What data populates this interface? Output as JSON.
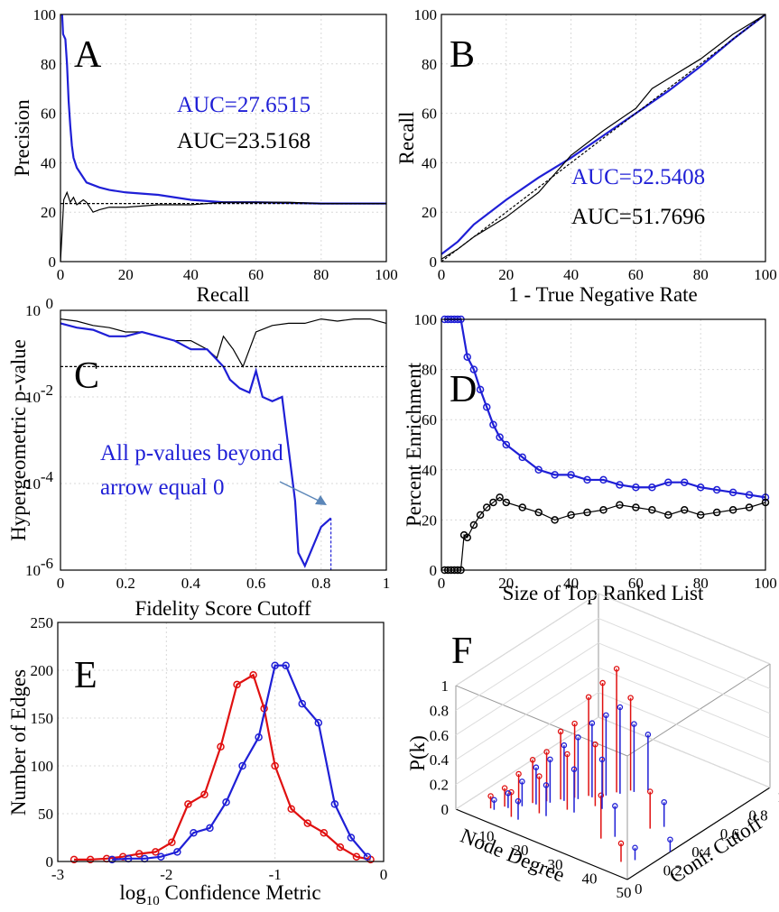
{
  "chart_data": [
    {
      "panel": "A",
      "type": "line",
      "xlabel": "Recall",
      "ylabel": "Precision",
      "xlim": [
        0,
        100
      ],
      "ylim": [
        0,
        100
      ],
      "xticks": [
        0,
        20,
        40,
        60,
        80,
        100
      ],
      "yticks": [
        0,
        20,
        40,
        60,
        80,
        100
      ],
      "grid": true,
      "annotations": [
        {
          "text": "AUC=27.6515",
          "color": "#1f1fd6"
        },
        {
          "text": "AUC=23.5168",
          "color": "#000000"
        }
      ],
      "series": [
        {
          "color": "#1f1fd6",
          "x": [
            0.5,
            0.8,
            1.5,
            2,
            2.5,
            3,
            3.5,
            4,
            5,
            6,
            7,
            8,
            10,
            12,
            15,
            20,
            30,
            40,
            50,
            60,
            80,
            100
          ],
          "y": [
            100,
            92,
            90,
            80,
            65,
            55,
            47,
            42,
            38,
            36,
            34,
            32,
            31,
            30,
            29,
            28,
            27,
            25,
            24,
            24,
            23.5,
            23.5
          ]
        },
        {
          "color": "#000000",
          "x": [
            0,
            0.5,
            1,
            2,
            3,
            4,
            5,
            7,
            8,
            9,
            10,
            12,
            15,
            20,
            30,
            40,
            50,
            60,
            70,
            80,
            90,
            100
          ],
          "y": [
            0,
            12,
            25,
            28,
            24,
            26,
            23,
            25,
            24,
            22,
            20,
            21,
            22,
            22,
            23,
            23,
            24,
            24,
            24,
            23.5,
            23.5,
            23.5
          ]
        },
        {
          "color": "#000000",
          "dashed": true,
          "x": [
            0,
            100
          ],
          "y": [
            23.5,
            23.5
          ]
        }
      ]
    },
    {
      "panel": "B",
      "type": "line",
      "xlabel": "1 - True Negative Rate",
      "ylabel": "Recall",
      "xlim": [
        0,
        100
      ],
      "ylim": [
        0,
        100
      ],
      "xticks": [
        0,
        20,
        40,
        60,
        80,
        100
      ],
      "yticks": [
        0,
        20,
        40,
        60,
        80,
        100
      ],
      "grid": true,
      "annotations": [
        {
          "text": "AUC=52.5408",
          "color": "#1f1fd6"
        },
        {
          "text": "AUC=51.7696",
          "color": "#000000"
        }
      ],
      "series": [
        {
          "color": "#1f1fd6",
          "x": [
            0,
            5,
            10,
            20,
            30,
            40,
            50,
            60,
            70,
            80,
            90,
            100
          ],
          "y": [
            3,
            8,
            15,
            25,
            34,
            42,
            51,
            60,
            69,
            79,
            90,
            100
          ]
        },
        {
          "color": "#000000",
          "x": [
            0,
            5,
            10,
            20,
            30,
            40,
            50,
            60,
            65,
            70,
            80,
            90,
            100
          ],
          "y": [
            1,
            5,
            10,
            18,
            28,
            43,
            53,
            62,
            70,
            74,
            82,
            92,
            100
          ]
        },
        {
          "color": "#000000",
          "dashed": true,
          "x": [
            0,
            100
          ],
          "y": [
            0,
            100
          ]
        }
      ]
    },
    {
      "panel": "C",
      "type": "line",
      "yscale": "log",
      "xlabel": "Fidelity Score Cutoff",
      "ylabel": "Hypergeometric p-value",
      "xlim": [
        0,
        1
      ],
      "ylim": [
        1e-06,
        1
      ],
      "xticks": [
        0,
        0.2,
        0.4,
        0.6,
        0.8,
        1
      ],
      "yticks": [
        -6,
        -4,
        -2,
        0
      ],
      "ytick_labels": [
        {
          "base": "10",
          "exp": "-6"
        },
        {
          "base": "10",
          "exp": "-4"
        },
        {
          "base": "10",
          "exp": "-2"
        },
        {
          "base": "10",
          "exp": "0"
        }
      ],
      "grid": true,
      "annotations": [
        {
          "text": "All p-values beyond",
          "color": "#1f1fd6"
        },
        {
          "text": "arrow equal 0",
          "color": "#1f1fd6"
        }
      ],
      "series": [
        {
          "color": "#000000",
          "x": [
            0,
            0.05,
            0.1,
            0.15,
            0.2,
            0.25,
            0.3,
            0.35,
            0.4,
            0.45,
            0.48,
            0.5,
            0.53,
            0.56,
            0.6,
            0.65,
            0.7,
            0.75,
            0.8,
            0.85,
            0.9,
            0.95,
            1
          ],
          "logy": [
            -0.2,
            -0.25,
            -0.35,
            -0.4,
            -0.5,
            -0.5,
            -0.6,
            -0.7,
            -0.7,
            -0.9,
            -1.1,
            -0.6,
            -0.9,
            -1.3,
            -0.5,
            -0.35,
            -0.3,
            -0.3,
            -0.2,
            -0.25,
            -0.2,
            -0.2,
            -0.3
          ]
        },
        {
          "color": "#1f1fd6",
          "x": [
            0,
            0.05,
            0.1,
            0.15,
            0.2,
            0.25,
            0.3,
            0.35,
            0.4,
            0.45,
            0.5,
            0.52,
            0.55,
            0.58,
            0.6,
            0.62,
            0.65,
            0.68,
            0.7,
            0.72,
            0.73,
            0.75,
            0.8,
            0.83
          ],
          "logy": [
            -0.3,
            -0.4,
            -0.45,
            -0.6,
            -0.6,
            -0.5,
            -0.6,
            -0.7,
            -0.9,
            -0.9,
            -1.3,
            -1.6,
            -1.8,
            -1.9,
            -1.4,
            -2.0,
            -2.1,
            -2.0,
            -3.2,
            -4.4,
            -5.6,
            -5.9,
            -5.0,
            -4.8
          ]
        },
        {
          "color": "#000000",
          "dashed": true,
          "x": [
            0,
            1
          ],
          "logy": [
            -1.3,
            -1.3
          ]
        },
        {
          "color": "#1f1fd6",
          "dashed": true,
          "x": [
            0.83,
            0.83
          ],
          "logy": [
            -4.8,
            -6
          ]
        }
      ]
    },
    {
      "panel": "D",
      "type": "line",
      "xlabel": "Size of Top Ranked List",
      "ylabel": "Percent Enrichment",
      "xlim": [
        0,
        100
      ],
      "ylim": [
        0,
        100
      ],
      "xticks": [
        0,
        20,
        40,
        60,
        80,
        100
      ],
      "yticks": [
        0,
        20,
        40,
        60,
        80,
        100
      ],
      "grid": true,
      "series": [
        {
          "color": "#1f1fd6",
          "marker": "circle",
          "x": [
            1,
            2,
            3,
            4,
            5,
            6,
            8,
            10,
            12,
            14,
            16,
            18,
            20,
            25,
            30,
            35,
            40,
            45,
            50,
            55,
            60,
            65,
            70,
            75,
            80,
            85,
            90,
            95,
            100
          ],
          "y": [
            100,
            100,
            100,
            100,
            100,
            100,
            85,
            80,
            72,
            65,
            58,
            53,
            50,
            45,
            40,
            38,
            38,
            36,
            36,
            34,
            33,
            33,
            35,
            35,
            33,
            32,
            31,
            30,
            29
          ]
        },
        {
          "color": "#000000",
          "marker": "circle",
          "x": [
            1,
            2,
            3,
            4,
            5,
            6,
            7,
            8,
            10,
            12,
            14,
            16,
            18,
            20,
            25,
            30,
            35,
            40,
            45,
            50,
            55,
            60,
            65,
            70,
            75,
            80,
            85,
            90,
            95,
            100
          ],
          "y": [
            0,
            0,
            0,
            0,
            0,
            0,
            14,
            13,
            18,
            22,
            25,
            27,
            29,
            27,
            25,
            23,
            20,
            22,
            23,
            24,
            26,
            25,
            24,
            22,
            24,
            22,
            23,
            24,
            25,
            27
          ]
        }
      ]
    },
    {
      "panel": "E",
      "type": "line",
      "xlabel": "log10 Confidence Metric",
      "ylabel": "Number of Edges",
      "xlim": [
        -3,
        0
      ],
      "ylim": [
        0,
        250
      ],
      "xticks": [
        -3,
        -2,
        -1,
        0
      ],
      "yticks": [
        0,
        50,
        100,
        150,
        200,
        250
      ],
      "grid": true,
      "series": [
        {
          "color": "#e01010",
          "marker": "circle",
          "x": [
            -2.85,
            -2.7,
            -2.55,
            -2.4,
            -2.25,
            -2.1,
            -1.95,
            -1.8,
            -1.65,
            -1.5,
            -1.35,
            -1.2,
            -1.1,
            -1.0,
            -0.85,
            -0.7,
            -0.55,
            -0.4,
            -0.25,
            -0.12
          ],
          "y": [
            2,
            2,
            3,
            5,
            8,
            10,
            20,
            60,
            70,
            120,
            185,
            195,
            160,
            100,
            55,
            40,
            30,
            15,
            5,
            2
          ]
        },
        {
          "color": "#1f1fd6",
          "marker": "circle",
          "x": [
            -2.5,
            -2.35,
            -2.2,
            -2.05,
            -1.9,
            -1.75,
            -1.6,
            -1.45,
            -1.3,
            -1.15,
            -1.0,
            -0.9,
            -0.75,
            -0.6,
            -0.45,
            -0.3,
            -0.15
          ],
          "y": [
            2,
            3,
            3,
            5,
            10,
            30,
            35,
            62,
            100,
            130,
            205,
            205,
            165,
            145,
            60,
            25,
            5
          ]
        }
      ]
    },
    {
      "panel": "F",
      "type": "stem3d",
      "xlabel": "Node Degree",
      "ylabel": "Conf. Cutoff",
      "zlabel": "P(k)",
      "xticks": [
        10,
        20,
        30,
        40,
        50
      ],
      "yticks": [
        0,
        0.2,
        0.4,
        0.6,
        0.8,
        1
      ],
      "zticks": [
        0,
        0.2,
        0.4,
        0.6,
        0.8,
        1
      ],
      "series": [
        {
          "color": "#e01010",
          "stems": [
            [
              6,
              0.1,
              0.1
            ],
            [
              8,
              0.15,
              0.15
            ],
            [
              10,
              0.2,
              0.25
            ],
            [
              12,
              0.25,
              0.35
            ],
            [
              14,
              0.3,
              0.4
            ],
            [
              16,
              0.35,
              0.55
            ],
            [
              18,
              0.4,
              0.6
            ],
            [
              20,
              0.45,
              0.8
            ],
            [
              22,
              0.5,
              0.9
            ],
            [
              24,
              0.55,
              1.0
            ],
            [
              26,
              0.6,
              0.75
            ],
            [
              12,
              0.1,
              0.2
            ],
            [
              16,
              0.2,
              0.3
            ],
            [
              20,
              0.3,
              0.45
            ],
            [
              24,
              0.4,
              0.5
            ],
            [
              34,
              0.2,
              0.35
            ],
            [
              40,
              0.4,
              0.3
            ],
            [
              44,
              0.1,
              0.15
            ]
          ]
        },
        {
          "color": "#1f1fd6",
          "stems": [
            [
              7,
              0.1,
              0.08
            ],
            [
              9,
              0.15,
              0.12
            ],
            [
              11,
              0.2,
              0.2
            ],
            [
              13,
              0.25,
              0.3
            ],
            [
              15,
              0.3,
              0.35
            ],
            [
              17,
              0.35,
              0.45
            ],
            [
              19,
              0.4,
              0.5
            ],
            [
              21,
              0.45,
              0.6
            ],
            [
              23,
              0.5,
              0.65
            ],
            [
              25,
              0.55,
              0.7
            ],
            [
              27,
              0.6,
              0.55
            ],
            [
              29,
              0.65,
              0.45
            ],
            [
              14,
              0.1,
              0.15
            ],
            [
              18,
              0.2,
              0.25
            ],
            [
              22,
              0.3,
              0.35
            ],
            [
              26,
              0.4,
              0.4
            ],
            [
              36,
              0.25,
              0.25
            ],
            [
              42,
              0.45,
              0.2
            ],
            [
              46,
              0.15,
              0.1
            ],
            [
              50,
              0.3,
              0.1
            ]
          ]
        }
      ]
    }
  ]
}
